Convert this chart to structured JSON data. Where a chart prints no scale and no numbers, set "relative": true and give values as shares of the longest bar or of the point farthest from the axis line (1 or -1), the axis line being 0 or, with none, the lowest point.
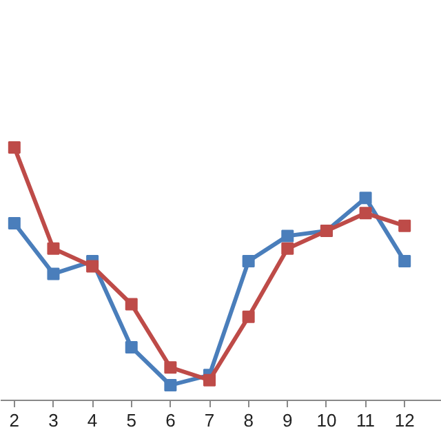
{
  "chart_data": {
    "type": "line",
    "relative": true,
    "categories": [
      "2",
      "3",
      "4",
      "5",
      "6",
      "7",
      "8",
      "9",
      "10",
      "11",
      "12"
    ],
    "series": [
      {
        "color": "#4a7ebb",
        "values": [
          0.7,
          0.5,
          0.55,
          0.21,
          0.06,
          0.1,
          0.55,
          0.65,
          0.67,
          0.8,
          0.55
        ]
      },
      {
        "color": "#be4b48",
        "values": [
          1.0,
          0.6,
          0.53,
          0.38,
          0.13,
          0.08,
          0.33,
          0.6,
          0.67,
          0.74,
          0.69
        ]
      }
    ],
    "marker": "square",
    "line_style": "solid",
    "grid": false
  }
}
